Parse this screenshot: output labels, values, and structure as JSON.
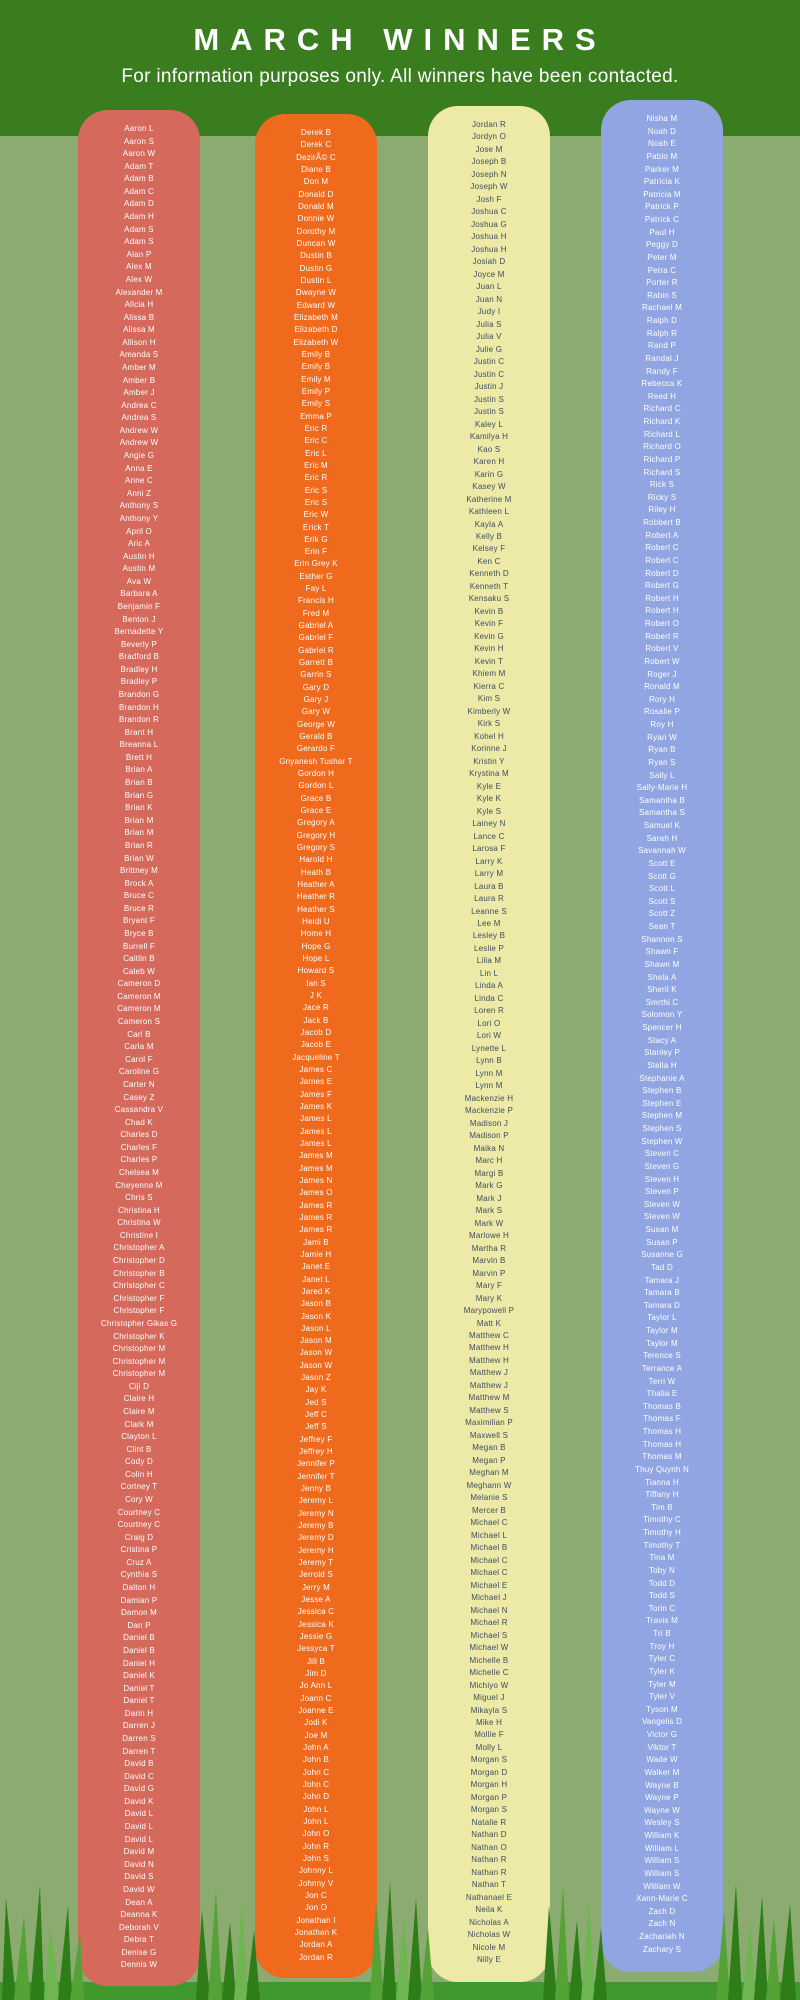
{
  "header": {
    "title": "MARCH WINNERS",
    "subtitle": "For information purposes only. All winners have been contacted."
  },
  "background": {
    "header_green": "#3a7d1e",
    "body_green": "#8cab70",
    "footer_green": "#3f992c",
    "grass_dark": "#2e7d19",
    "grass_mid": "#55a337",
    "grass_light": "#6fb551"
  },
  "columns": [
    {
      "id": "column-1",
      "color": "#d4695c",
      "text_color": "#ffffff",
      "names": [
        "Aaron L",
        "Aaron S",
        "Aaron W",
        "Adam T",
        "Adam B",
        "Adam C",
        "Adam D",
        "Adam H",
        "Adam S",
        "Adam S",
        "Alan P",
        "Alex M",
        "Alex W",
        "Alexander M",
        "Alicia H",
        "Alissa B",
        "Alissa M",
        "Allison H",
        "Amanda S",
        "Amber M",
        "Amber B",
        "Amber J",
        "Andrea C",
        "Andrea S",
        "Andrew W",
        "Andrew W",
        "Angie G",
        "Anna E",
        "Anne C",
        "Anni Z",
        "Anthony S",
        "Anthony Y",
        "April O",
        "Aric A",
        "Austin H",
        "Austin M",
        "Ava W",
        "Barbara A",
        "Benjamin F",
        "Benton J",
        "Bernadette Y",
        "Beverly P",
        "Bradford B",
        "Bradley H",
        "Bradley P",
        "Brandon G",
        "Brandon H",
        "Brandon R",
        "Brant H",
        "Breanna L",
        "Brett H",
        "Brian A",
        "Brian B",
        "Brian G",
        "Brian K",
        "Brian M",
        "Brian M",
        "Brian R",
        "Brian W",
        "Brittney M",
        "Brock A",
        "Bruce C",
        "Bruce R",
        "Bryant F",
        "Bryce B",
        "Burrell F",
        "Caitlin B",
        "Caleb W",
        "Cameron D",
        "Cameron M",
        "Cameron M",
        "Cameron S",
        "Carl B",
        "Carla M",
        "Carol F",
        "Caroline G",
        "Carter N",
        "Casey Z",
        "Cassandra V",
        "Chad K",
        "Charles D",
        "Charles F",
        "Charles P",
        "Chelsea M",
        "Cheyenne M",
        "Chris S",
        "Christina H",
        "Christina W",
        "Christine I",
        "Christopher A",
        "Christopher D",
        "Christopher B",
        "Christopher C",
        "Christopher F",
        "Christopher F",
        "Christopher Gikas G",
        "Christopher K",
        "Christopher M",
        "Christopher M",
        "Christopher M",
        "Ciji D",
        "Claire H",
        "Claire M",
        "Clark M",
        "Clayton L",
        "Clint B",
        "Cody D",
        "Colin H",
        "Cortney T",
        "Cory W",
        "Courtney C",
        "Courtney C",
        "Craig D",
        "Cristina P",
        "Cruz A",
        "Cynthia S",
        "Dalton H",
        "Damian P",
        "Damon M",
        "Dan P",
        "Daniel B",
        "Daniel B",
        "Daniel H",
        "Daniel K",
        "Daniel T",
        "Daniel T",
        "Darin H",
        "Darren J",
        "Darren S",
        "Darren T",
        "David B",
        "David C",
        "David G",
        "David K",
        "David L",
        "David L",
        "David L",
        "David M",
        "David N",
        "David S",
        "David W",
        "Dean A",
        "Deanna K",
        "Deborah V",
        "Debra T",
        "Denise G",
        "Dennis W"
      ]
    },
    {
      "id": "column-2",
      "color": "#ef6a1d",
      "text_color": "#ffffff",
      "names": [
        "Derek B",
        "Derek C",
        "DezirÃ© C",
        "Diane B",
        "Don M",
        "Donald D",
        "Donald M",
        "Donnie W",
        "Dorothy M",
        "Duncan W",
        "Dustin B",
        "Dustin G",
        "Dustin L",
        "Dwayne W",
        "Edward W",
        "Elizabeth M",
        "Elizabeth D",
        "Elizabeth W",
        "Emily B",
        "Emily B",
        "Emily M",
        "Emily P",
        "Emily S",
        "Emma P",
        "Eric R",
        "Eric C",
        "Eric L",
        "Eric M",
        "Eric R",
        "Eric S",
        "Eric S",
        "Eric W",
        "Erick T",
        "Erik G",
        "Erin F",
        "Erin Grey K",
        "Esther G",
        "Fay L",
        "Francis H",
        "Fred M",
        "Gabriel A",
        "Gabriel F",
        "Gabriel R",
        "Garrett B",
        "Garrin S",
        "Gary D",
        "Gary J",
        "Gary W",
        "George W",
        "Gerald B",
        "Gerardo F",
        "Gnyanesh Tushar T",
        "Gordon H",
        "Gordon L",
        "Grace B",
        "Grace E",
        "Gregory A",
        "Gregory H",
        "Gregory S",
        "Harold H",
        "Heath B",
        "Heather A",
        "Heather R",
        "Heather S",
        "Heidi U",
        "Home H",
        "Hope G",
        "Hope L",
        "Howard S",
        "Ian S",
        "J K",
        "Jace R",
        "Jack B",
        "Jacob D",
        "Jacob E",
        "Jacqueline T",
        "James C",
        "James E",
        "James F",
        "James K",
        "James L",
        "James L",
        "James L",
        "James M",
        "James M",
        "James N",
        "James O",
        "James R",
        "James R",
        "James R",
        "Jami B",
        "Jamie H",
        "Janet E",
        "Janet L",
        "Jared K",
        "Jason B",
        "Jason K",
        "Jason L",
        "Jason M",
        "Jason W",
        "Jason W",
        "Jason Z",
        "Jay K",
        "Jed S",
        "Jeff C",
        "Jeff S",
        "Jeffrey F",
        "Jeffrey H",
        "Jennifer P",
        "Jennifer T",
        "Jenny B",
        "Jeremy L",
        "Jeremy N",
        "Jeremy B",
        "Jeremy D",
        "Jeremy H",
        "Jeremy T",
        "Jerrold S",
        "Jerry M",
        "Jesse A",
        "Jessica C",
        "Jessica K",
        "Jessie G",
        "Jessyca T",
        "Jill B",
        "Jim D",
        "Jo Ann L",
        "Joann C",
        "Joanne E",
        "Jodi K",
        "Joe M",
        "John A",
        "John B",
        "John C",
        "John C",
        "John D",
        "John L",
        "John L",
        "John O",
        "John R",
        "John S",
        "Johnny L",
        "Johnny V",
        "Jon C",
        "Jon O",
        "Jonathan I",
        "Jonathan K",
        "Jordan A",
        "Jordan R"
      ]
    },
    {
      "id": "column-3",
      "color": "#ede9a7",
      "text_color": "#3f4e5f",
      "names": [
        "Jordan R",
        "Jordyn O",
        "Jose M",
        "Joseph B",
        "Joseph N",
        "Joseph W",
        "Josh F",
        "Joshua C",
        "Joshua G",
        "Joshua H",
        "Joshua H",
        "Josiah D",
        "Joyce M",
        "Juan L",
        "Juan N",
        "Judy I",
        "Julia S",
        "Julia V",
        "Julie G",
        "Justin C",
        "Justin C",
        "Justin J",
        "Justin S",
        "Justin S",
        "Kaley L",
        "Kamilya H",
        "Kao S",
        "Karen H",
        "Karin G",
        "Kasey W",
        "Katherine M",
        "Kathleen L",
        "Kayla A",
        "Kelly B",
        "Kelsey F",
        "Ken C",
        "Kenneth D",
        "Kenneth T",
        "Kensaku S",
        "Kevin B",
        "Kevin F",
        "Kevin G",
        "Kevin H",
        "Kevin T",
        "Khiem M",
        "Kierra C",
        "Kim S",
        "Kimberly W",
        "Kirk S",
        "Kohel H",
        "Korinne J",
        "Kristin Y",
        "Krystina M",
        "Kyle E",
        "Kyle K",
        "Kyle S",
        "Lainey N",
        "Lance C",
        "Larosa F",
        "Larry K",
        "Larry M",
        "Laura B",
        "Laura R",
        "Leanne S",
        "Lee M",
        "Lesley B",
        "Leslie P",
        "Lilia M",
        "Lin L",
        "Linda A",
        "Linda C",
        "Loren R",
        "Lori O",
        "Lori W",
        "Lynette L",
        "Lynn B",
        "Lynn M",
        "Lynn M",
        "Mackenzie H",
        "Mackenzie P",
        "Madison J",
        "Madison P",
        "Maika N",
        "Marc H",
        "Margi B",
        "Mark G",
        "Mark J",
        "Mark S",
        "Mark W",
        "Marlowe H",
        "Martha R",
        "Marvin B",
        "Marvin P",
        "Mary F",
        "Mary K",
        "Marypowell P",
        "Matt K",
        "Matthew C",
        "Matthew H",
        "Matthew H",
        "Matthew J",
        "Matthew J",
        "Matthew M",
        "Matthew S",
        "Maximilian P",
        "Maxwell S",
        "Megan B",
        "Megan P",
        "Meghan M",
        "Meghann W",
        "Melanie S",
        "Mercer B",
        "Michael C",
        "Michael L",
        "Michael B",
        "Michael C",
        "Michael C",
        "Michael E",
        "Michael J",
        "Michael N",
        "Michael R",
        "Michael S",
        "Michael W",
        "Michelle B",
        "Michelle C",
        "Michiyo W",
        "Miguel J",
        "Mikayla S",
        "Mike H",
        "Mollie F",
        "Molly L",
        "Morgan S",
        "Morgan D",
        "Morgan H",
        "Morgan P",
        "Morgan S",
        "Natalie R",
        "Nathan D",
        "Nathan O",
        "Nathan R",
        "Nathan R",
        "Nathan T",
        "Nathanael E",
        "Neila K",
        "Nicholas A",
        "Nicholas W",
        "Nicole M",
        "Nilly E"
      ]
    },
    {
      "id": "column-4",
      "color": "#90a5e2",
      "text_color": "#ffffff",
      "names": [
        "Nisha M",
        "Noah D",
        "Noah E",
        "Pablo M",
        "Parker M",
        "Patricia K",
        "Patricia M",
        "Patrick P",
        "Patrick C",
        "Paul H",
        "Peggy D",
        "Peter M",
        "Petra C",
        "Porter R",
        "Rabin S",
        "Rachael M",
        "Ralph D",
        "Ralph R",
        "Rand P",
        "Randal J",
        "Randy F",
        "Rebecca K",
        "Reed H",
        "Richard C",
        "Richard K",
        "Richard L",
        "Richard O",
        "Richard P",
        "Richard S",
        "Rick S",
        "Ricky S",
        "Riley H",
        "Robbert B",
        "Robert A",
        "Robert C",
        "Robert C",
        "Robert D",
        "Robert G",
        "Robert H",
        "Robert H",
        "Robert O",
        "Robert R",
        "Robert V",
        "Robert W",
        "Roger J",
        "Ronald M",
        "Rory H",
        "Rosalie P",
        "Roy H",
        "Ryan W",
        "Ryan B",
        "Ryan S",
        "Sally L",
        "Sally-Marie H",
        "Samantha B",
        "Samantha S",
        "Samuel K",
        "Sarah H",
        "Savannah W",
        "Scott E",
        "Scott G",
        "Scott L",
        "Scott S",
        "Scott Z",
        "Sean T",
        "Shannon S",
        "Shawn F",
        "Shawn M",
        "Shela A",
        "Sheril K",
        "Smrthi C",
        "Solomon Y",
        "Spencer H",
        "Stacy A",
        "Stanley P",
        "Stella H",
        "Stephanie A",
        "Stephen B",
        "Stephen E",
        "Stephen M",
        "Stephen S",
        "Stephen W",
        "Steven C",
        "Steven G",
        "Steven H",
        "Steven P",
        "Steven W",
        "Steven W",
        "Susan M",
        "Susan P",
        "Susanne G",
        "Tad D",
        "Tamara J",
        "Tamara B",
        "Tamara D",
        "Taylor L",
        "Taylor M",
        "Taylor M",
        "Terence S",
        "Terrance A",
        "Terri W",
        "Thalia E",
        "Thomas B",
        "Thomas F",
        "Thomas H",
        "Thomas H",
        "Thomas M",
        "Thuy Quynh N",
        "Tianna H",
        "Tiffany H",
        "Tim B",
        "Timothy C",
        "Timothy H",
        "Timothy T",
        "Tina M",
        "Toby N",
        "Todd D",
        "Todd S",
        "Torin C",
        "Travis M",
        "Tri B",
        "Troy H",
        "Tyler C",
        "Tyler K",
        "Tyler M",
        "Tyler V",
        "Tyson M",
        "Vangelis D",
        "Victor G",
        "Viktor T",
        "Wade W",
        "Walker M",
        "Wayne B",
        "Wayne P",
        "Wayne W",
        "Wesley S",
        "William K",
        "William L",
        "William S",
        "William S",
        "William W",
        "Xann-Marie C",
        "Zach D",
        "Zach N",
        "Zachariah N",
        "Zachary S"
      ]
    }
  ]
}
